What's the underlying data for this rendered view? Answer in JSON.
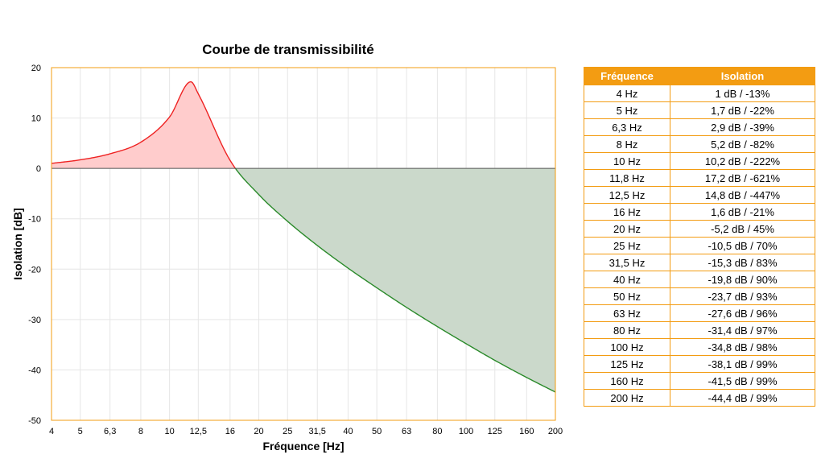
{
  "colors": {
    "accent": "#f39c12",
    "positive_fill": "#ffcccc",
    "positive_line": "#ee2222",
    "negative_fill": "#cbd9cb",
    "negative_line": "#2a8a2a",
    "zero_line": "#555555",
    "grid": "#e6e6e6"
  },
  "chart_data": {
    "type": "area",
    "title": "Courbe de transmissibilité",
    "xlabel": "Fréquence [Hz]",
    "ylabel": "Isolation [dB]",
    "x_scale": "log",
    "xlim": [
      4,
      200
    ],
    "ylim": [
      -50,
      20
    ],
    "grid": true,
    "x_ticks": [
      4,
      5,
      6.3,
      8,
      10,
      12.5,
      16,
      20,
      25,
      31.5,
      40,
      50,
      63,
      80,
      100,
      125,
      160,
      200
    ],
    "x_tick_labels": [
      "4",
      "5",
      "6,3",
      "8",
      "10",
      "12,5",
      "16",
      "20",
      "25",
      "31,5",
      "40",
      "50",
      "63",
      "80",
      "100",
      "125",
      "160",
      "200"
    ],
    "y_ticks": [
      20,
      10,
      0,
      -10,
      -20,
      -30,
      -40,
      -50
    ],
    "y_tick_labels": [
      "20",
      "10",
      "0",
      "-10",
      "-20",
      "-30",
      "-40",
      "-50"
    ],
    "series": [
      {
        "x": [
          4,
          5,
          6.3,
          8,
          10,
          11.8,
          12.5,
          16,
          20,
          25,
          31.5,
          40,
          50,
          63,
          80,
          100,
          125,
          160,
          200
        ],
        "y": [
          1,
          1.7,
          2.9,
          5.2,
          10.2,
          17.2,
          14.8,
          1.6,
          -5.2,
          -10.5,
          -15.3,
          -19.8,
          -23.7,
          -27.6,
          -31.4,
          -34.8,
          -38.1,
          -41.5,
          -44.4
        ]
      }
    ]
  },
  "table": {
    "headers": [
      "Fréquence",
      "Isolation"
    ],
    "rows": [
      [
        "4 Hz",
        "1 dB / -13%"
      ],
      [
        "5 Hz",
        "1,7 dB / -22%"
      ],
      [
        "6,3 Hz",
        "2,9 dB / -39%"
      ],
      [
        "8 Hz",
        "5,2 dB / -82%"
      ],
      [
        "10 Hz",
        "10,2 dB / -222%"
      ],
      [
        "11,8 Hz",
        "17,2 dB / -621%"
      ],
      [
        "12,5 Hz",
        "14,8 dB / -447%"
      ],
      [
        "16 Hz",
        "1,6 dB / -21%"
      ],
      [
        "20 Hz",
        "-5,2 dB / 45%"
      ],
      [
        "25 Hz",
        "-10,5 dB / 70%"
      ],
      [
        "31,5 Hz",
        "-15,3 dB / 83%"
      ],
      [
        "40 Hz",
        "-19,8 dB / 90%"
      ],
      [
        "50 Hz",
        "-23,7 dB / 93%"
      ],
      [
        "63 Hz",
        "-27,6 dB / 96%"
      ],
      [
        "80 Hz",
        "-31,4 dB / 97%"
      ],
      [
        "100 Hz",
        "-34,8 dB / 98%"
      ],
      [
        "125 Hz",
        "-38,1 dB / 99%"
      ],
      [
        "160 Hz",
        "-41,5 dB / 99%"
      ],
      [
        "200 Hz",
        "-44,4 dB / 99%"
      ]
    ]
  }
}
